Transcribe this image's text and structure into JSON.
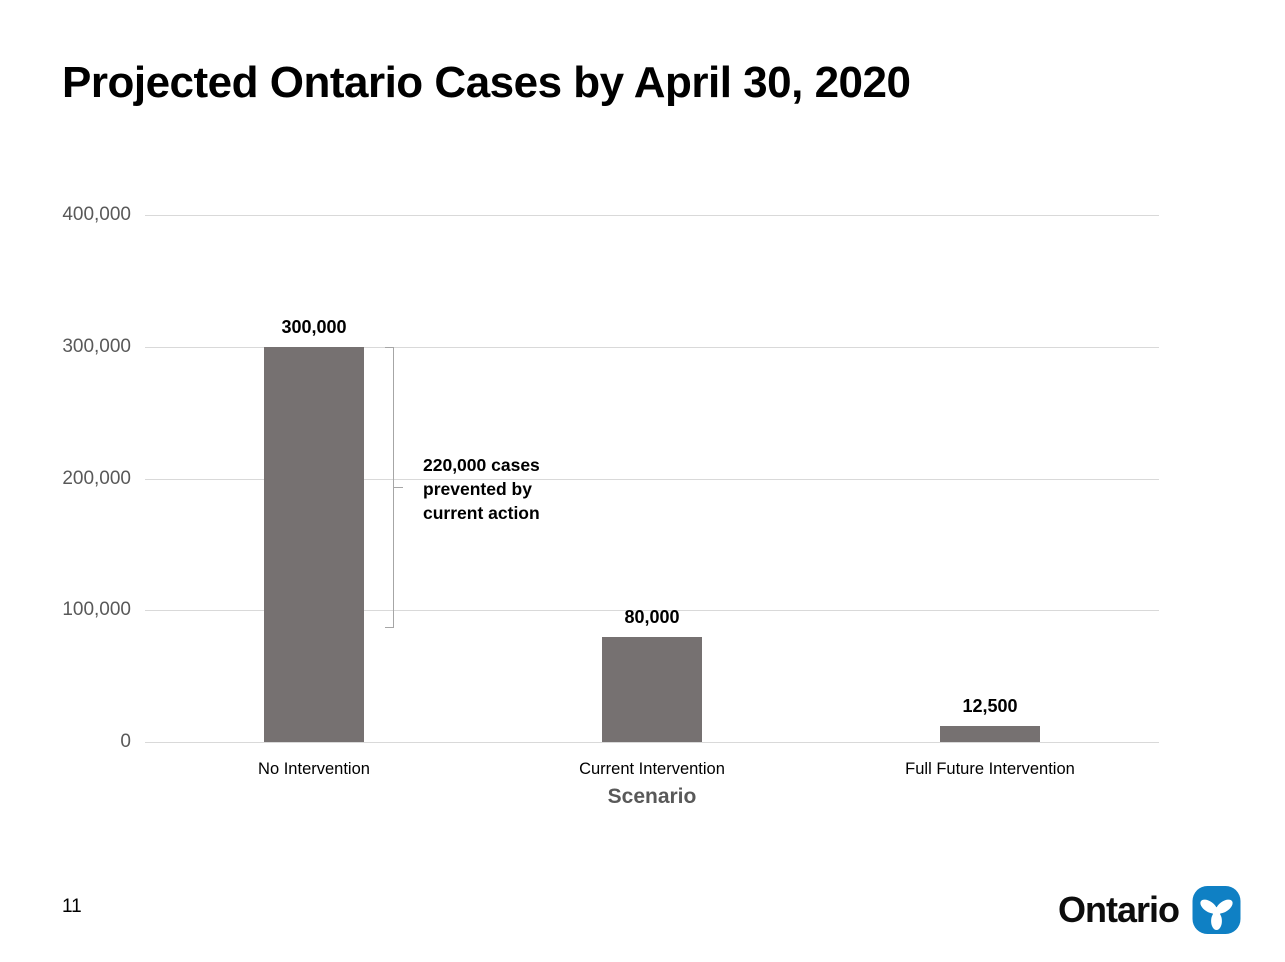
{
  "slide": {
    "title": "Projected Ontario Cases by April 30, 2020",
    "page_number": "11",
    "logo": {
      "wordmark": "Ontario",
      "trillium_blue": "#0F80C4"
    }
  },
  "chart_data": {
    "type": "bar",
    "title": "Projected Ontario Cases by April 30, 2020",
    "categories": [
      "No Intervention",
      "Current Intervention",
      "Full Future Intervention"
    ],
    "values": [
      300000,
      80000,
      12500
    ],
    "value_labels": [
      "300,000",
      "80,000",
      "12,500"
    ],
    "xlabel": "Scenario",
    "ylabel": "",
    "ylim": [
      0,
      400000
    ],
    "yticks": [
      400000,
      300000,
      200000,
      100000,
      0
    ],
    "ytick_labels": [
      "400,000",
      "300,000",
      "200,000",
      "100,000",
      "0"
    ],
    "grid": true,
    "legend_position": "none",
    "bar_color": "#767171",
    "gridline_color": "#d9d9d9",
    "axis_label_color": "#595959",
    "annotation": {
      "text_lines": [
        "220,000 cases",
        "prevented by",
        "current action"
      ],
      "bracket_from_value": 300000,
      "bracket_to_value": 87000,
      "bracket_color": "#a6a6a6"
    }
  }
}
